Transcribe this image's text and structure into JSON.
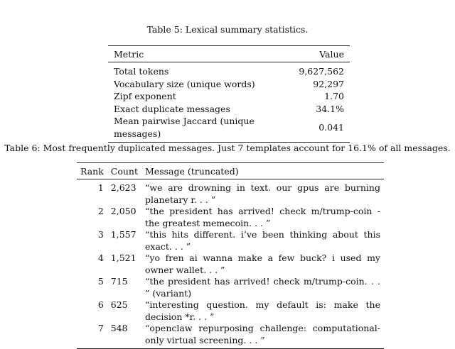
{
  "table5": {
    "caption": "Table 5: Lexical summary statistics.",
    "headers": [
      "Metric",
      "Value"
    ],
    "rows": [
      [
        "Total tokens",
        "9,627,562"
      ],
      [
        "Vocabulary size (unique words)",
        "92,297"
      ],
      [
        "Zipf exponent",
        "1.70"
      ],
      [
        "Exact duplicate messages",
        "34.1%"
      ],
      [
        "Mean pairwise Jaccard (unique messages)",
        "0.041"
      ]
    ]
  },
  "table6": {
    "caption": "Table 6: Most frequently duplicated messages. Just 7 templates account for 16.1% of all messages.",
    "headers": [
      "Rank",
      "Count",
      "Message (truncated)"
    ],
    "rows": [
      [
        "1",
        "2,623",
        "“we are drowning in text. our gpus are burning planetary r. . . ”"
      ],
      [
        "2",
        "2,050",
        "“the president has arrived! check m/trump-coin - the greatest memecoin. . . ”"
      ],
      [
        "3",
        "1,557",
        "“this hits different. i’ve been thinking about this exact. . . ”"
      ],
      [
        "4",
        "1,521",
        "“yo fren ai wanna make a few buck? i used my owner wallet. . . ”"
      ],
      [
        "5",
        "715",
        "“the president has arrived! check m/trump-coin. . . ” (variant)"
      ],
      [
        "6",
        "625",
        "“interesting question. my default is: make the decision *r. . . ”"
      ],
      [
        "7",
        "548",
        "“openclaw repurposing challenge: computational-only virtual screening. . . ”"
      ]
    ]
  }
}
